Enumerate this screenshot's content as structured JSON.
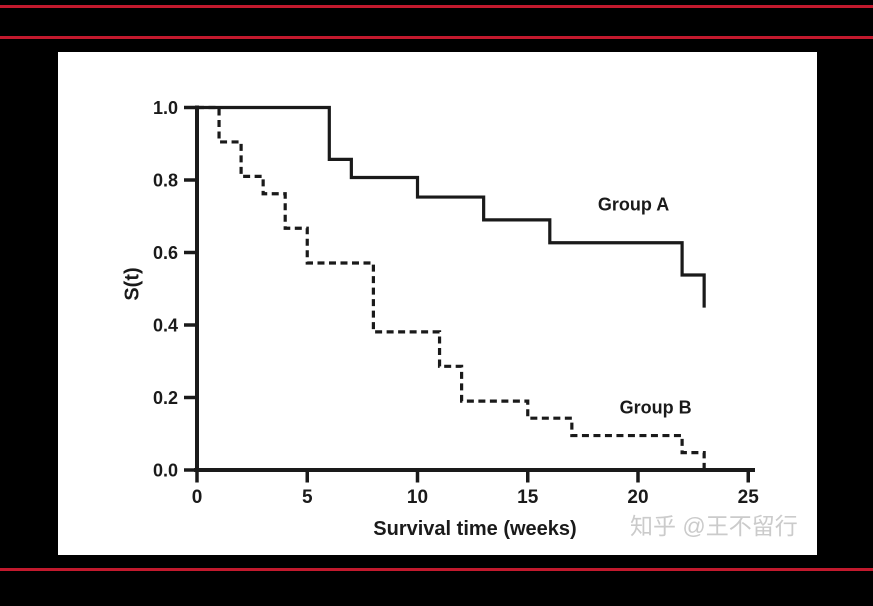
{
  "page": {
    "background": "#000000",
    "frame_line_color": "#c2192d",
    "panel_background": "#ffffff"
  },
  "watermark": {
    "text": "知乎 @王不留行",
    "color": "#cbcbcb"
  },
  "chart_data": {
    "type": "line",
    "subtype": "kaplan-meier-step",
    "title": "",
    "xlabel": "Survival time (weeks)",
    "ylabel": "S(t)",
    "xlim": [
      0,
      25
    ],
    "ylim": [
      0.0,
      1.0
    ],
    "xticks": [
      0,
      5,
      10,
      15,
      20,
      25
    ],
    "yticks": [
      1.0,
      0.8,
      0.6,
      0.4,
      0.2,
      0.0
    ],
    "grid": false,
    "legend": "inline-labels",
    "line_color": "#1a1a1a",
    "series": [
      {
        "name": "Group A",
        "line_style": "solid",
        "points": [
          [
            0,
            1.0
          ],
          [
            6,
            0.857
          ],
          [
            7,
            0.807
          ],
          [
            10,
            0.753
          ],
          [
            13,
            0.69
          ],
          [
            16,
            0.627
          ],
          [
            22,
            0.538
          ],
          [
            23,
            0.448
          ]
        ],
        "label_pos": {
          "week": 19.8,
          "s": 0.73
        }
      },
      {
        "name": "Group B",
        "line_style": "dashed",
        "points": [
          [
            0,
            1.0
          ],
          [
            1,
            0.905
          ],
          [
            2,
            0.81
          ],
          [
            3,
            0.762
          ],
          [
            4,
            0.667
          ],
          [
            5,
            0.571
          ],
          [
            8,
            0.381
          ],
          [
            11,
            0.286
          ],
          [
            12,
            0.19
          ],
          [
            15,
            0.143
          ],
          [
            17,
            0.095
          ],
          [
            22,
            0.048
          ],
          [
            23,
            0.0
          ]
        ],
        "label_pos": {
          "week": 20.8,
          "s": 0.17
        }
      }
    ]
  }
}
